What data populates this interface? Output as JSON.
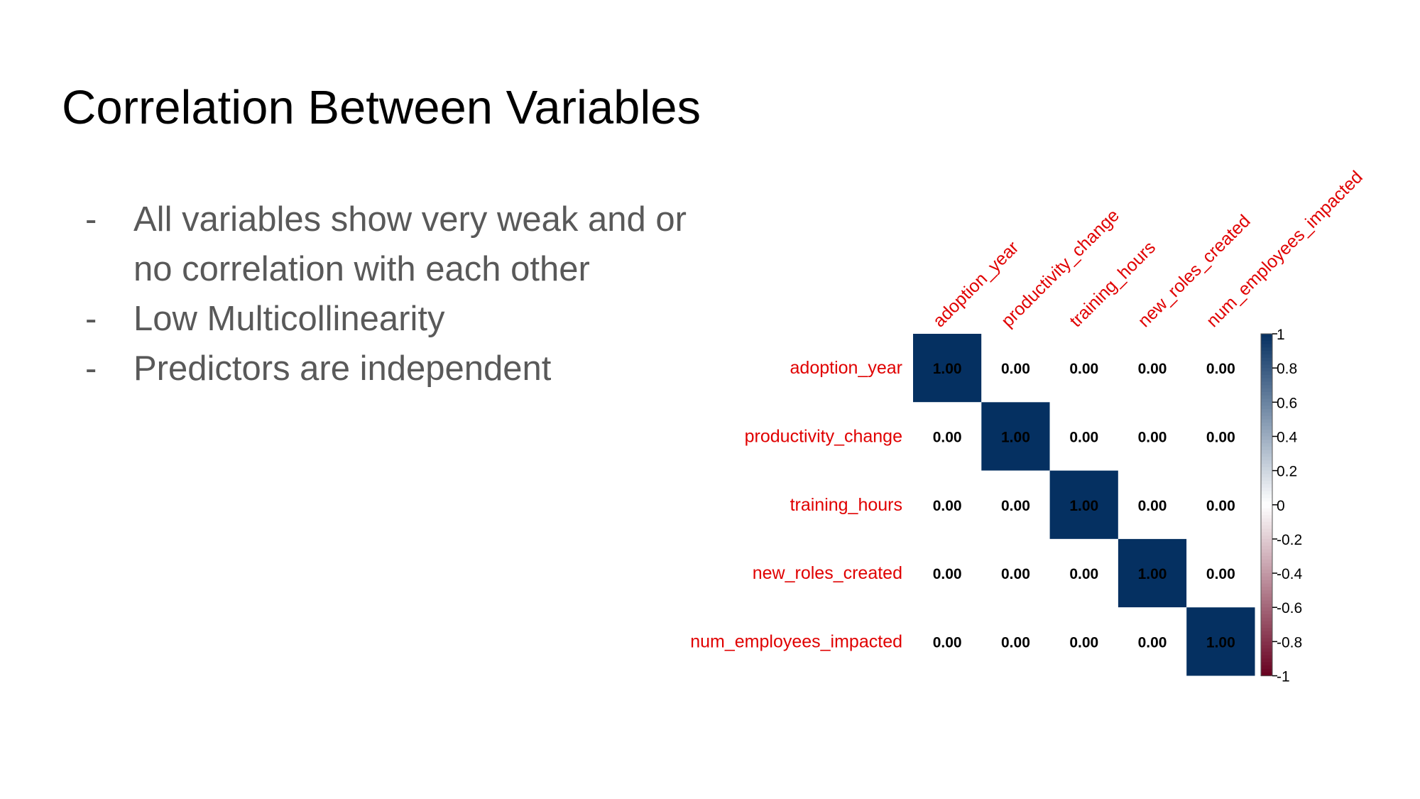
{
  "slide": {
    "title": "Correlation Between Variables",
    "bullets": [
      "All variables show very weak and or no correlation with each other",
      "Low Multicollinearity",
      "Predictors are independent"
    ],
    "bullet_marker": "-"
  },
  "chart_data": {
    "type": "heatmap",
    "title": "",
    "variables": [
      "adoption_year",
      "productivity_change",
      "training_hours",
      "new_roles_created",
      "num_employees_impacted"
    ],
    "matrix": [
      [
        1.0,
        0.0,
        0.0,
        0.0,
        0.0
      ],
      [
        0.0,
        1.0,
        0.0,
        0.0,
        0.0
      ],
      [
        0.0,
        0.0,
        1.0,
        0.0,
        0.0
      ],
      [
        0.0,
        0.0,
        0.0,
        1.0,
        0.0
      ],
      [
        0.0,
        0.0,
        0.0,
        0.0,
        1.0
      ]
    ],
    "colorbar": {
      "range": [
        -1,
        1
      ],
      "ticks": [
        "1",
        "0.8",
        "0.6",
        "0.4",
        "0.2",
        "0",
        "-0.2",
        "-0.4",
        "-0.6",
        "-0.8",
        "-1"
      ],
      "colors": {
        "negative": "#67001f",
        "zero": "#ffffff",
        "positive": "#053061"
      }
    },
    "label_color": "#e00000"
  }
}
